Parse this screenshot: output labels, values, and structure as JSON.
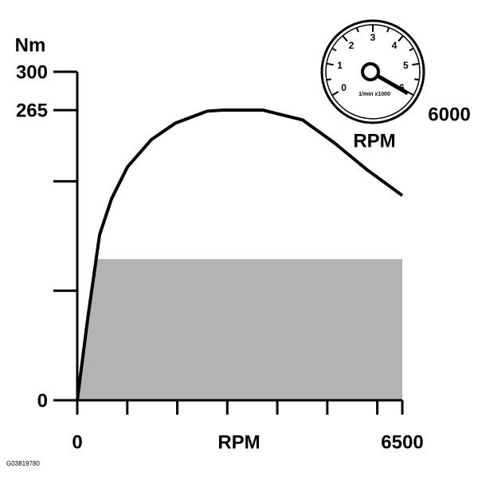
{
  "chart_data": {
    "type": "line",
    "ylabel": "Nm",
    "xlabel": "RPM",
    "series": [
      {
        "kind": "area",
        "color": "#b3b3b3",
        "x": [
          0,
          400,
          6500
        ],
        "values": [
          0,
          129,
          129
        ]
      },
      {
        "kind": "line",
        "color": "#000000",
        "x": [
          0,
          207,
          446,
          685,
          1003,
          1481,
          1959,
          2596,
          2914,
          3710,
          4506,
          5143,
          5780,
          6500
        ],
        "values": [
          0,
          74,
          151,
          184,
          213,
          238,
          253,
          264,
          265,
          265,
          256,
          235,
          211,
          187
        ]
      }
    ],
    "xlim": [
      0,
      6500
    ],
    "ylim": [
      0,
      300
    ],
    "xticks": [
      0,
      {
        "value": 1000,
        "label": null
      },
      {
        "value": 2000,
        "label": null
      },
      {
        "value": 3000,
        "label": null
      },
      {
        "value": 4000,
        "label": null
      },
      {
        "value": 5000,
        "label": null
      },
      {
        "value": 6000,
        "label": null
      },
      6500
    ],
    "yticks": [
      0,
      {
        "value": 100,
        "label": null
      },
      {
        "value": 200,
        "label": null
      },
      265,
      300
    ]
  },
  "gauge": {
    "scale_labels": [
      "0",
      "1",
      "2",
      "3",
      "4",
      "5",
      "6"
    ],
    "unit_label": "1/min x1000",
    "max_label": "6000",
    "label": "RPM"
  },
  "figure_id": "G03819780"
}
